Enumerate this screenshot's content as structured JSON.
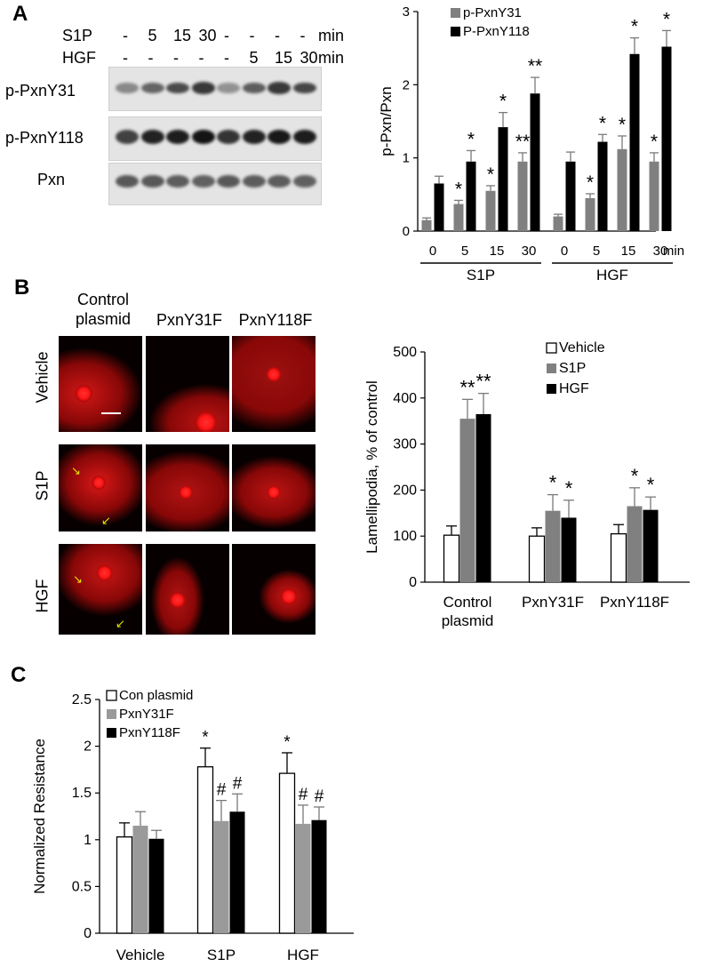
{
  "panels": {
    "A": "A",
    "B": "B",
    "C": "C"
  },
  "blot": {
    "s1p_label": "S1P",
    "hgf_label": "HGF",
    "s1p_values": [
      "-",
      "5",
      "15",
      "30",
      "-",
      "-",
      "-",
      "-"
    ],
    "hgf_values": [
      "-",
      "-",
      "-",
      "-",
      "-",
      "5",
      "15",
      "30"
    ],
    "unit": "min",
    "rows": [
      "p-PxnY31",
      "p-PxnY118",
      "Pxn"
    ],
    "row_intensity": [
      [
        0.35,
        0.55,
        0.7,
        0.8,
        0.3,
        0.6,
        0.8,
        0.72
      ],
      [
        0.75,
        0.92,
        0.95,
        1.0,
        0.82,
        0.92,
        0.98,
        0.95
      ],
      [
        0.62,
        0.62,
        0.6,
        0.58,
        0.62,
        0.6,
        0.6,
        0.58
      ]
    ]
  },
  "micro": {
    "columns": [
      "Control\nplasmid",
      "PxnY31F",
      "PxnY118F"
    ],
    "rows": [
      "Vehicle",
      "S1P",
      "HGF"
    ],
    "arrow_color": "#e6e600",
    "signal_color": "#e01010"
  },
  "chart_data": [
    {
      "type": "bar",
      "id": "A",
      "ylabel": "p-Pxn/Pxn",
      "ylim": [
        0,
        3
      ],
      "yticks": [
        0,
        1,
        2,
        3
      ],
      "categories": [
        "0",
        "5",
        "15",
        "30",
        "0",
        "5",
        "15",
        "30"
      ],
      "x_unit": "min",
      "groups": [
        {
          "label": "S1P",
          "range": [
            0,
            3
          ]
        },
        {
          "label": "HGF",
          "range": [
            4,
            7
          ]
        }
      ],
      "series": [
        {
          "name": "p-PxnY31",
          "color": "#808080",
          "values": [
            0.15,
            0.37,
            0.55,
            0.95,
            0.2,
            0.45,
            1.12,
            0.95
          ],
          "errors": [
            0.03,
            0.05,
            0.07,
            0.12,
            0.03,
            0.06,
            0.18,
            0.12
          ],
          "sig": [
            "",
            "*",
            "*",
            "**",
            "",
            "*",
            "*",
            "*"
          ]
        },
        {
          "name": "P-PxnY118",
          "color": "#000000",
          "values": [
            0.65,
            0.95,
            1.42,
            1.88,
            0.95,
            1.22,
            2.42,
            2.52
          ],
          "errors": [
            0.1,
            0.15,
            0.2,
            0.22,
            0.13,
            0.1,
            0.22,
            0.22
          ],
          "sig": [
            "",
            "*",
            "*",
            "**",
            "",
            "*",
            "*",
            "*"
          ]
        }
      ],
      "legend": "top-left"
    },
    {
      "type": "bar",
      "id": "B",
      "ylabel": "Lamellipodia, % of control",
      "ylim": [
        0,
        500
      ],
      "yticks": [
        0,
        100,
        200,
        300,
        400,
        500
      ],
      "categories": [
        "Control\nplasmid",
        "PxnY31F",
        "PxnY118F"
      ],
      "series": [
        {
          "name": "Vehicle",
          "color": "#ffffff",
          "values": [
            102,
            100,
            105
          ],
          "errors": [
            20,
            18,
            20
          ],
          "sig": [
            "",
            "",
            ""
          ]
        },
        {
          "name": "S1P",
          "color": "#808080",
          "values": [
            355,
            155,
            165
          ],
          "errors": [
            42,
            35,
            40
          ],
          "sig": [
            "**",
            "*",
            "*"
          ]
        },
        {
          "name": "HGF",
          "color": "#000000",
          "values": [
            365,
            140,
            157
          ],
          "errors": [
            45,
            38,
            28
          ],
          "sig": [
            "**",
            "*",
            "*"
          ]
        }
      ],
      "legend": "top-right"
    },
    {
      "type": "bar",
      "id": "C",
      "ylabel": "Normalized Resistance",
      "ylim": [
        0,
        2.5
      ],
      "yticks": [
        0,
        0.5,
        1,
        1.5,
        2,
        2.5
      ],
      "categories": [
        "Vehicle",
        "S1P",
        "HGF"
      ],
      "series": [
        {
          "name": "Con plasmid",
          "color": "#ffffff",
          "values": [
            1.03,
            1.78,
            1.71
          ],
          "errors": [
            0.15,
            0.2,
            0.22
          ],
          "sig": [
            "",
            "*",
            "*"
          ]
        },
        {
          "name": "PxnY31F",
          "color": "#9a9a9a",
          "values": [
            1.15,
            1.2,
            1.17
          ],
          "errors": [
            0.15,
            0.22,
            0.2
          ],
          "sig": [
            "",
            "#",
            "#"
          ]
        },
        {
          "name": "PxnY118F",
          "color": "#000000",
          "values": [
            1.01,
            1.3,
            1.21
          ],
          "errors": [
            0.09,
            0.19,
            0.14
          ],
          "sig": [
            "",
            "#",
            "#"
          ]
        }
      ],
      "legend": "top-left"
    }
  ]
}
